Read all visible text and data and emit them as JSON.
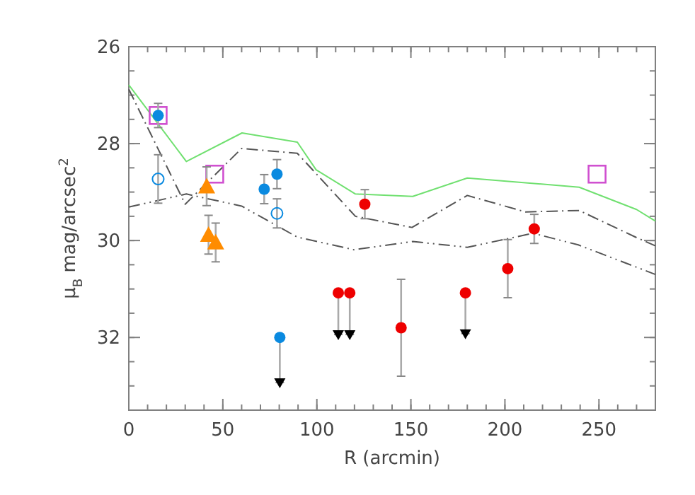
{
  "chart_data": {
    "type": "scatter",
    "xlabel": "R (arcmin)",
    "ylabel": "μ$_{B}$  mag/arcsec$^{2}$",
    "xlim": [
      0,
      280
    ],
    "xticks": [
      0,
      50,
      100,
      150,
      200,
      250
    ],
    "ylim": [
      33.5,
      26
    ],
    "yticks": [
      26,
      28,
      30,
      32
    ],
    "grid": false,
    "series": [
      {
        "type": "line",
        "color": "#70e070",
        "line_style": "solid",
        "x": [
          0,
          30.6,
          60.2,
          89.6,
          99.6,
          120.5,
          151,
          180,
          239.5,
          270,
          280
        ],
        "values": [
          26.79,
          28.37,
          27.78,
          27.97,
          28.54,
          29.04,
          29.09,
          28.71,
          28.9,
          29.36,
          29.6
        ]
      },
      {
        "type": "line",
        "color": "#555555",
        "line_style": "dashdot",
        "x": [
          0,
          30,
          60,
          89.6,
          120.5,
          150.6,
          180,
          211,
          239.5,
          270,
          280
        ],
        "values": [
          26.88,
          29.25,
          28.1,
          28.2,
          29.5,
          29.73,
          29.07,
          29.41,
          29.38,
          29.94,
          30.11
        ]
      },
      {
        "type": "line",
        "color": "#555555",
        "line_style": "dashdotdot",
        "x": [
          0,
          30.6,
          60,
          89.6,
          119.7,
          151,
          180,
          215,
          239,
          280
        ],
        "values": [
          29.31,
          29.04,
          29.29,
          29.93,
          30.19,
          30.02,
          30.14,
          29.85,
          30.09,
          30.7
        ]
      },
      {
        "color": "#d050d0",
        "marker": "square-open",
        "x": [
          15.6,
          45.7,
          249
        ],
        "values": [
          27.42,
          28.63,
          28.63
        ]
      },
      {
        "color": "#0a8ae0",
        "marker": "circle",
        "x": [
          15.6,
          72,
          78.8
        ],
        "values": [
          27.42,
          28.94,
          28.63
        ],
        "errors": [
          0.25,
          0.3,
          0.3
        ]
      },
      {
        "color": "#0a8ae0",
        "marker": "circle-open",
        "x": [
          15.6,
          78.8
        ],
        "values": [
          28.73,
          29.44
        ],
        "errors": [
          0.5,
          0.3
        ]
      },
      {
        "color": "#ff8c00",
        "marker": "triangle",
        "x": [
          41.4,
          42.4,
          46.2
        ],
        "values": [
          28.88,
          29.88,
          30.04
        ],
        "errors": [
          0.4,
          0.4,
          0.4
        ]
      },
      {
        "color": "#ee0000",
        "marker": "circle",
        "x": [
          125.5,
          144.8,
          201.5,
          215.6
        ],
        "values": [
          29.25,
          31.8,
          30.58,
          29.76
        ],
        "errors": [
          0.3,
          1.0,
          0.6,
          0.3
        ]
      },
      {
        "color": "#0a8ae0",
        "marker": "circle",
        "x": [
          80.3
        ],
        "values": [
          32.0
        ],
        "errors": [
          [
            32.0,
            32.93
          ]
        ]
      },
      {
        "color": "#ee0000",
        "marker": "circle",
        "x": [
          111.4,
          117.5,
          179
        ],
        "values": [
          31.08,
          31.08,
          31.08
        ],
        "errors": [
          [
            31.08,
            31.94
          ],
          [
            31.08,
            31.94
          ],
          [
            31.08,
            31.92
          ]
        ]
      },
      {
        "color": "#000000",
        "marker": "triangle-down",
        "x": [
          80.3,
          111.4,
          117.5,
          179
        ],
        "values": [
          32.93,
          31.94,
          31.94,
          31.92
        ]
      }
    ]
  }
}
